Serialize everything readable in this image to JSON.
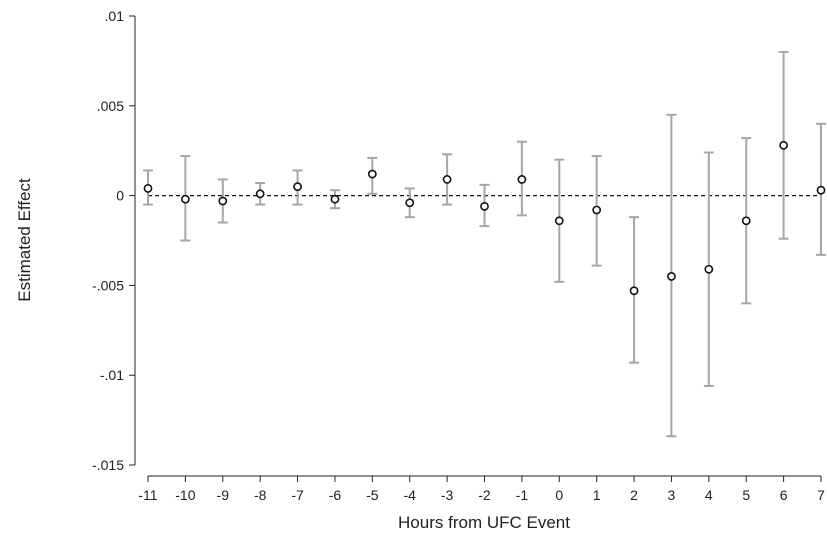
{
  "chart_data": {
    "type": "scatter",
    "xlabel": "Hours from UFC Event",
    "ylabel": "Estimated Effect",
    "x": [
      -11,
      -10,
      -9,
      -8,
      -7,
      -6,
      -5,
      -4,
      -3,
      -2,
      -1,
      0,
      1,
      2,
      3,
      4,
      5,
      6,
      7
    ],
    "estimates": [
      0.0004,
      -0.0002,
      -0.0003,
      0.0001,
      0.0005,
      -0.0002,
      0.0012,
      -0.0004,
      0.0009,
      -0.0006,
      0.0009,
      -0.0014,
      -0.0008,
      -0.0053,
      -0.0045,
      -0.0041,
      -0.0014,
      0.0028,
      0.0003
    ],
    "ci_lower": [
      -0.0005,
      -0.0025,
      -0.0015,
      -0.0005,
      -0.0005,
      -0.0007,
      0.0001,
      -0.0012,
      -0.0005,
      -0.0017,
      -0.0011,
      -0.0048,
      -0.0039,
      -0.0093,
      -0.0134,
      -0.0106,
      -0.006,
      -0.0024,
      -0.0033
    ],
    "ci_upper": [
      0.0014,
      0.0022,
      0.0009,
      0.0007,
      0.0014,
      0.0003,
      0.0021,
      0.0004,
      0.0023,
      0.0006,
      0.003,
      0.002,
      0.0022,
      -0.0012,
      0.0045,
      0.0024,
      0.0032,
      0.008,
      0.004
    ],
    "xticks": [
      "-11",
      "-10",
      "-9",
      "-8",
      "-7",
      "-6",
      "-5",
      "-4",
      "-3",
      "-2",
      "-1",
      "0",
      "1",
      "2",
      "3",
      "4",
      "5",
      "6",
      "7"
    ],
    "yticks": [
      {
        "value": 0.01,
        "label": ".01"
      },
      {
        "value": 0.005,
        "label": ".005"
      },
      {
        "value": 0,
        "label": "0"
      },
      {
        "value": -0.005,
        "label": "-.005"
      },
      {
        "value": -0.01,
        "label": "-.01"
      },
      {
        "value": -0.015,
        "label": "-.015"
      }
    ],
    "ylim": [
      -0.015,
      0.01
    ],
    "xlim": [
      -11,
      7
    ],
    "reference_line": 0,
    "grid": false,
    "colors": {
      "ci": "#a6a6a6",
      "point_edge": "#111111",
      "point_fill": "#ffffff",
      "axis": "#222222",
      "reference": "#111111"
    }
  }
}
